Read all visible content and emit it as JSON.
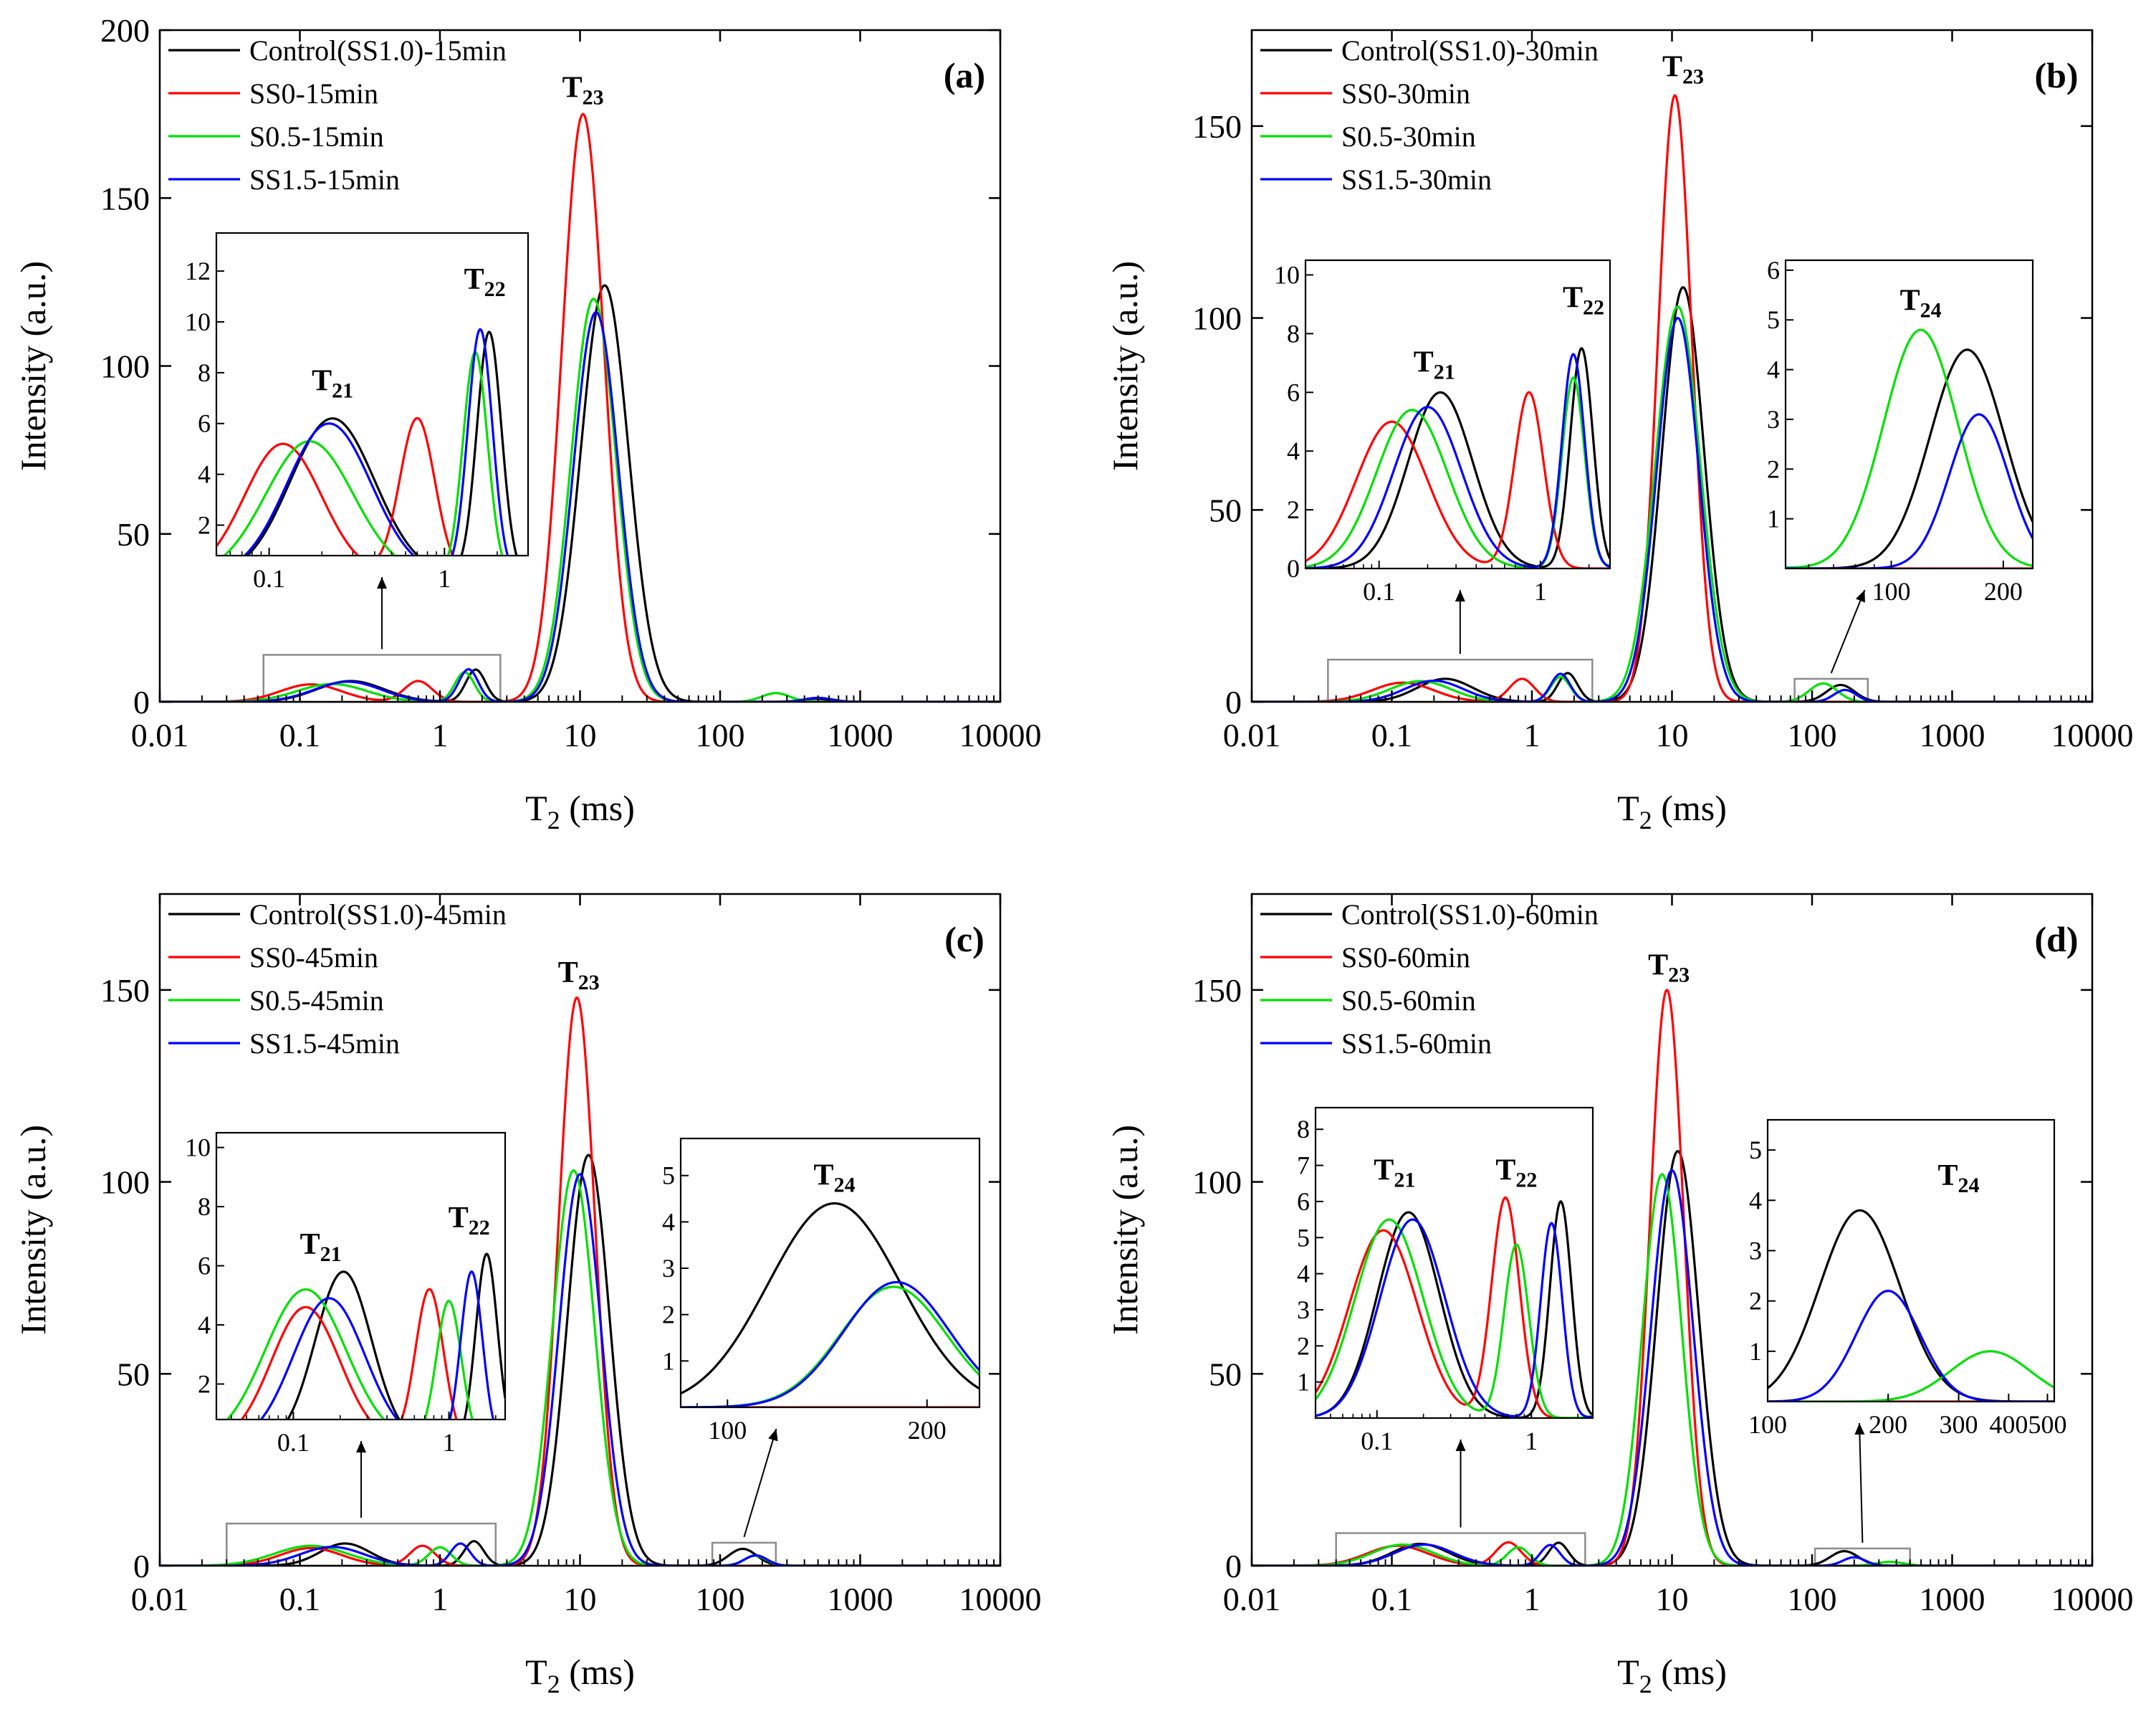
{
  "figure": {
    "xlabel": "T",
    "xlabel_sub": "2",
    "xlabel_unit": " (ms)",
    "ylabel": "Intensity (a.u.)"
  },
  "colors": {
    "control": "#000000",
    "ss0": "#ff0000",
    "s05": "#00e000",
    "ss15": "#0000ff",
    "zoombox": "#8c8c8c"
  },
  "chart_data": [
    {
      "type": "line",
      "panel": "(a)",
      "title": "",
      "xlabel": "T2 (ms)",
      "ylabel": "Intensity (a.u.)",
      "xscale": "log",
      "xlim": [
        0.01,
        10000
      ],
      "ylim": [
        0,
        200
      ],
      "xticks": [
        0.01,
        0.1,
        1,
        10,
        100,
        1000,
        10000
      ],
      "xtick_labels": [
        "0.01",
        "0.1",
        "1",
        "10",
        "100",
        "1000",
        "10000"
      ],
      "yticks": [
        0,
        50,
        100,
        150,
        200
      ],
      "ytick_labels": [
        "0",
        "50",
        "100",
        "150",
        "200"
      ],
      "legend": [
        "Control(SS1.0)-15min",
        "SS0-15min",
        "S0.5-15min",
        "SS1.5-15min"
      ],
      "peak_labels": [
        {
          "main": "T",
          "sub": "23",
          "x": 10.5,
          "y": 180
        }
      ],
      "series": [
        {
          "name": "Control(SS1.0)-15min",
          "peaks": [
            {
              "c": 0.23,
              "h": 6.2,
              "w": 0.24
            },
            {
              "c": 1.8,
              "h": 9.6,
              "w": 0.07
            },
            {
              "c": 15,
              "h": 124,
              "w": 0.17
            },
            {
              "c": 480,
              "h": 0.9,
              "w": 0.1
            }
          ]
        },
        {
          "name": "SS0-15min",
          "peaks": [
            {
              "c": 0.12,
              "h": 5.2,
              "w": 0.22
            },
            {
              "c": 0.7,
              "h": 6.2,
              "w": 0.1
            },
            {
              "c": 10.5,
              "h": 175,
              "w": 0.15
            }
          ]
        },
        {
          "name": "S0.5-15min",
          "peaks": [
            {
              "c": 0.17,
              "h": 5.3,
              "w": 0.25
            },
            {
              "c": 1.5,
              "h": 8.8,
              "w": 0.07
            },
            {
              "c": 12.5,
              "h": 120,
              "w": 0.16
            },
            {
              "c": 250,
              "h": 2.6,
              "w": 0.1
            }
          ]
        },
        {
          "name": "SS1.5-15min",
          "peaks": [
            {
              "c": 0.22,
              "h": 6.0,
              "w": 0.24
            },
            {
              "c": 1.6,
              "h": 9.7,
              "w": 0.07
            },
            {
              "c": 13,
              "h": 116,
              "w": 0.16
            },
            {
              "c": 500,
              "h": 1.2,
              "w": 0.1
            }
          ]
        }
      ],
      "zoom_boxes": [
        {
          "x0": 0.055,
          "x1": 2.7,
          "y0": 0,
          "y1": 14
        }
      ],
      "insets": [
        {
          "name": "T21-T22",
          "xscale": "log",
          "xlim": [
            0.05,
            3.0
          ],
          "ylim": [
            0.8,
            13.5
          ],
          "xticks": [
            0.1,
            1
          ],
          "xtick_labels": [
            "0.1",
            "1"
          ],
          "yticks": [
            2,
            4,
            6,
            8,
            10,
            12
          ],
          "ytick_labels": [
            "2",
            "4",
            "6",
            "8",
            "10",
            "12"
          ],
          "labels": [
            {
              "main": "T",
              "sub": "21",
              "x": 0.23,
              "y": 7.3
            },
            {
              "main": "T",
              "sub": "22",
              "x": 1.7,
              "y": 11.3
            }
          ]
        }
      ]
    },
    {
      "type": "line",
      "panel": "(b)",
      "title": "",
      "xlabel": "T2 (ms)",
      "ylabel": "Intensity (a.u.)",
      "xscale": "log",
      "xlim": [
        0.01,
        10000
      ],
      "ylim": [
        0,
        175
      ],
      "xticks": [
        0.01,
        0.1,
        1,
        10,
        100,
        1000,
        10000
      ],
      "xtick_labels": [
        "0.01",
        "0.1",
        "1",
        "10",
        "100",
        "1000",
        "10000"
      ],
      "yticks": [
        0,
        50,
        100,
        150
      ],
      "ytick_labels": [
        "0",
        "50",
        "100",
        "150"
      ],
      "legend": [
        "Control(SS1.0)-30min",
        "SS0-30min",
        "S0.5-30min",
        "SS1.5-30min"
      ],
      "peak_labels": [
        {
          "main": "T",
          "sub": "23",
          "x": 12,
          "y": 163
        }
      ],
      "series": [
        {
          "name": "Control(SS1.0)-30min",
          "peaks": [
            {
              "c": 0.24,
              "h": 6.0,
              "w": 0.2
            },
            {
              "c": 1.8,
              "h": 7.5,
              "w": 0.07
            },
            {
              "c": 12,
              "h": 108,
              "w": 0.15
            },
            {
              "c": 160,
              "h": 4.4,
              "w": 0.1
            }
          ]
        },
        {
          "name": "SS0-30min",
          "peaks": [
            {
              "c": 0.12,
              "h": 5.0,
              "w": 0.22
            },
            {
              "c": 0.85,
              "h": 6.0,
              "w": 0.09
            },
            {
              "c": 10.5,
              "h": 158,
              "w": 0.12
            }
          ]
        },
        {
          "name": "S0.5-30min",
          "peaks": [
            {
              "c": 0.16,
              "h": 5.4,
              "w": 0.22
            },
            {
              "c": 1.6,
              "h": 6.5,
              "w": 0.07
            },
            {
              "c": 11,
              "h": 103,
              "w": 0.16
            },
            {
              "c": 120,
              "h": 4.8,
              "w": 0.1
            }
          ]
        },
        {
          "name": "SS1.5-30min",
          "peaks": [
            {
              "c": 0.2,
              "h": 5.5,
              "w": 0.21
            },
            {
              "c": 1.6,
              "h": 7.3,
              "w": 0.07
            },
            {
              "c": 11,
              "h": 100,
              "w": 0.15
            },
            {
              "c": 172,
              "h": 3.1,
              "w": 0.08
            }
          ]
        }
      ],
      "zoom_boxes": [
        {
          "x0": 0.035,
          "x1": 2.7,
          "y0": 0,
          "y1": 11
        },
        {
          "x0": 75,
          "x1": 250,
          "y0": 0,
          "y1": 6
        }
      ],
      "insets": [
        {
          "name": "T21-T22",
          "xscale": "log",
          "xlim": [
            0.035,
            2.7
          ],
          "ylim": [
            0,
            10.5
          ],
          "xticks": [
            0.1,
            1
          ],
          "xtick_labels": [
            "0.1",
            "1"
          ],
          "yticks": [
            0,
            2,
            4,
            6,
            8,
            10
          ],
          "ytick_labels": [
            "0",
            "2",
            "4",
            "6",
            "8",
            "10"
          ],
          "labels": [
            {
              "main": "T",
              "sub": "21",
              "x": 0.22,
              "y": 6.7
            },
            {
              "main": "T",
              "sub": "22",
              "x": 1.85,
              "y": 8.9
            }
          ]
        },
        {
          "name": "T24",
          "xscale": "log",
          "xlim": [
            52,
            240
          ],
          "ylim": [
            0,
            6.2
          ],
          "xticks": [
            100,
            200
          ],
          "xtick_labels": [
            "100",
            "200"
          ],
          "yticks": [
            1,
            2,
            3,
            4,
            5,
            6
          ],
          "ytick_labels": [
            "1",
            "2",
            "3",
            "4",
            "5",
            "6"
          ],
          "labels": [
            {
              "main": "T",
              "sub": "24",
              "x": 120,
              "y": 5.2
            }
          ]
        }
      ]
    },
    {
      "type": "line",
      "panel": "(c)",
      "title": "",
      "xlabel": "T2 (ms)",
      "ylabel": "Intensity (a.u.)",
      "xscale": "log",
      "xlim": [
        0.01,
        10000
      ],
      "ylim": [
        0,
        175
      ],
      "xticks": [
        0.01,
        0.1,
        1,
        10,
        100,
        1000,
        10000
      ],
      "xtick_labels": [
        "0.01",
        "0.1",
        "1",
        "10",
        "100",
        "1000",
        "10000"
      ],
      "yticks": [
        0,
        50,
        100,
        150
      ],
      "ytick_labels": [
        "0",
        "50",
        "100",
        "150"
      ],
      "legend": [
        "Control(SS1.0)-45min",
        "SS0-45min",
        "S0.5-45min",
        "SS1.5-45min"
      ],
      "peak_labels": [
        {
          "main": "T",
          "sub": "23",
          "x": 9.8,
          "y": 152
        }
      ],
      "series": [
        {
          "name": "Control(SS1.0)-45min",
          "peaks": [
            {
              "c": 0.21,
              "h": 5.8,
              "w": 0.18
            },
            {
              "c": 1.75,
              "h": 6.4,
              "w": 0.07
            },
            {
              "c": 11.5,
              "h": 107,
              "w": 0.15
            },
            {
              "c": 145,
              "h": 4.4,
              "w": 0.1
            }
          ]
        },
        {
          "name": "SS0-45min",
          "peaks": [
            {
              "c": 0.12,
              "h": 4.6,
              "w": 0.22
            },
            {
              "c": 0.75,
              "h": 5.2,
              "w": 0.09
            },
            {
              "c": 9.5,
              "h": 148,
              "w": 0.13
            }
          ]
        },
        {
          "name": "S0.5-45min",
          "peaks": [
            {
              "c": 0.12,
              "h": 5.2,
              "w": 0.26
            },
            {
              "c": 1.0,
              "h": 4.8,
              "w": 0.08
            },
            {
              "c": 9,
              "h": 103,
              "w": 0.15
            },
            {
              "c": 178,
              "h": 2.6,
              "w": 0.08
            }
          ]
        },
        {
          "name": "SS1.5-45min",
          "peaks": [
            {
              "c": 0.17,
              "h": 4.9,
              "w": 0.23
            },
            {
              "c": 1.4,
              "h": 5.8,
              "w": 0.07
            },
            {
              "c": 10,
              "h": 102,
              "w": 0.15
            },
            {
              "c": 180,
              "h": 2.7,
              "w": 0.08
            }
          ]
        }
      ],
      "zoom_boxes": [
        {
          "x0": 0.03,
          "x1": 2.5,
          "y0": 0,
          "y1": 11
        },
        {
          "x0": 88,
          "x1": 250,
          "y0": 0,
          "y1": 6
        }
      ],
      "insets": [
        {
          "name": "T21-T22",
          "xscale": "log",
          "xlim": [
            0.032,
            2.3
          ],
          "ylim": [
            0.8,
            10.5
          ],
          "xticks": [
            0.1,
            1
          ],
          "xtick_labels": [
            "0.1",
            "1"
          ],
          "yticks": [
            2,
            4,
            6,
            8,
            10
          ],
          "ytick_labels": [
            "2",
            "4",
            "6",
            "8",
            "10"
          ],
          "labels": [
            {
              "main": "T",
              "sub": "21",
              "x": 0.15,
              "y": 6.4
            },
            {
              "main": "T",
              "sub": "22",
              "x": 1.35,
              "y": 7.3
            }
          ]
        },
        {
          "name": "T24",
          "xscale": "log",
          "xlim": [
            85,
            240
          ],
          "ylim": [
            0,
            5.8
          ],
          "xticks": [
            100,
            200
          ],
          "xtick_labels": [
            "100",
            "200"
          ],
          "yticks": [
            1,
            2,
            3,
            4,
            5
          ],
          "ytick_labels": [
            "1",
            "2",
            "3",
            "4",
            "5"
          ],
          "labels": [
            {
              "main": "T",
              "sub": "24",
              "x": 145,
              "y": 4.8
            }
          ]
        }
      ]
    },
    {
      "type": "line",
      "panel": "(d)",
      "title": "",
      "xlabel": "T2 (ms)",
      "ylabel": "Intensity (a.u.)",
      "xscale": "log",
      "xlim": [
        0.01,
        10000
      ],
      "ylim": [
        0,
        175
      ],
      "xticks": [
        0.01,
        0.1,
        1,
        10,
        100,
        1000,
        10000
      ],
      "xtick_labels": [
        "0.01",
        "0.1",
        "1",
        "10",
        "100",
        "1000",
        "10000"
      ],
      "yticks": [
        0,
        50,
        100,
        150
      ],
      "ytick_labels": [
        "0",
        "50",
        "100",
        "150"
      ],
      "legend": [
        "Control(SS1.0)-60min",
        "SS0-60min",
        "S0.5-60min",
        "SS1.5-60min"
      ],
      "peak_labels": [
        {
          "main": "T",
          "sub": "23",
          "x": 9.5,
          "y": 154
        }
      ],
      "series": [
        {
          "name": "Control(SS1.0)-60min",
          "peaks": [
            {
              "c": 0.16,
              "h": 5.7,
              "w": 0.2
            },
            {
              "c": 1.55,
              "h": 6.0,
              "w": 0.07
            },
            {
              "c": 11,
              "h": 108,
              "w": 0.15
            },
            {
              "c": 170,
              "h": 3.8,
              "w": 0.1
            }
          ]
        },
        {
          "name": "SS0-60min",
          "peaks": [
            {
              "c": 0.11,
              "h": 5.2,
              "w": 0.22
            },
            {
              "c": 0.68,
              "h": 6.1,
              "w": 0.09
            },
            {
              "c": 9.2,
              "h": 150,
              "w": 0.12
            }
          ]
        },
        {
          "name": "S0.5-60min",
          "peaks": [
            {
              "c": 0.12,
              "h": 5.5,
              "w": 0.22
            },
            {
              "c": 0.8,
              "h": 4.8,
              "w": 0.08
            },
            {
              "c": 8.5,
              "h": 102,
              "w": 0.14
            },
            {
              "c": 360,
              "h": 1.0,
              "w": 0.1
            }
          ]
        },
        {
          "name": "SS1.5-60min",
          "peaks": [
            {
              "c": 0.17,
              "h": 5.5,
              "w": 0.21
            },
            {
              "c": 1.35,
              "h": 5.4,
              "w": 0.07
            },
            {
              "c": 10,
              "h": 103,
              "w": 0.15
            },
            {
              "c": 200,
              "h": 2.2,
              "w": 0.08
            }
          ]
        }
      ],
      "zoom_boxes": [
        {
          "x0": 0.04,
          "x1": 2.4,
          "y0": 0,
          "y1": 8.5
        },
        {
          "x0": 105,
          "x1": 500,
          "y0": 0,
          "y1": 4.5
        }
      ],
      "insets": [
        {
          "name": "T21-T22",
          "xscale": "log",
          "xlim": [
            0.04,
            2.5
          ],
          "ylim": [
            0,
            8.6
          ],
          "xticks": [
            0.1,
            1
          ],
          "xtick_labels": [
            "0.1",
            "1"
          ],
          "yticks": [
            1,
            2,
            3,
            4,
            5,
            6,
            7,
            8
          ],
          "ytick_labels": [
            "1",
            "2",
            "3",
            "4",
            "5",
            "6",
            "7",
            "8"
          ],
          "labels": [
            {
              "main": "T",
              "sub": "21",
              "x": 0.13,
              "y": 6.6
            },
            {
              "main": "T",
              "sub": "22",
              "x": 0.8,
              "y": 6.6
            }
          ]
        },
        {
          "name": "T24",
          "xscale": "log",
          "xlim": [
            100,
            520
          ],
          "ylim": [
            0,
            5.6
          ],
          "xticks": [
            100,
            200,
            300,
            400,
            500
          ],
          "xtick_labels": [
            "100",
            "200",
            "300",
            "400",
            "500"
          ],
          "yticks": [
            1,
            2,
            3,
            4,
            5
          ],
          "ytick_labels": [
            "1",
            "2",
            "3",
            "4",
            "5"
          ],
          "labels": [
            {
              "main": "T",
              "sub": "24",
              "x": 300,
              "y": 4.3
            }
          ]
        }
      ]
    }
  ]
}
